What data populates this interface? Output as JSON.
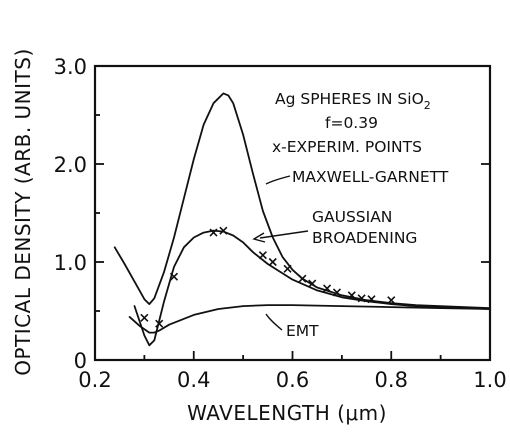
{
  "chart_data": {
    "type": "line",
    "xlabel": "WAVELENGTH (μm)",
    "ylabel": "OPTICAL DENSITY (ARB. UNITS)",
    "xlim": [
      0.2,
      1.0
    ],
    "ylim": [
      0.0,
      3.0
    ],
    "x_ticks": [
      0.2,
      0.4,
      0.6,
      0.8,
      1.0
    ],
    "x_tick_labels": [
      "0.2",
      "0.4",
      "0.6",
      "0.8",
      "1.0"
    ],
    "y_ticks": [
      0,
      1.0,
      2.0,
      3.0
    ],
    "y_tick_labels": [
      "0",
      "1.0",
      "2.0",
      "3.0"
    ],
    "grid": false,
    "annotations": {
      "title_line1": "Ag SPHERES IN SiO",
      "title_subscript": "2",
      "fill_fraction": "f=0.39",
      "experimental_note": "x-EXPERIM. POINTS",
      "maxwell_garnett": "MAXWELL-GARNETT",
      "gaussian_line1": "GAUSSIAN",
      "gaussian_line2": "BROADENING",
      "emt": "EMT"
    },
    "series": [
      {
        "name": "MAXWELL-GARNETT",
        "x": [
          0.24,
          0.26,
          0.28,
          0.3,
          0.31,
          0.32,
          0.34,
          0.36,
          0.38,
          0.4,
          0.42,
          0.44,
          0.46,
          0.47,
          0.48,
          0.5,
          0.52,
          0.54,
          0.56,
          0.58,
          0.6,
          0.62,
          0.65,
          0.7,
          0.75,
          0.8,
          0.85,
          0.9,
          0.95,
          1.0
        ],
        "y": [
          1.15,
          0.98,
          0.8,
          0.62,
          0.57,
          0.63,
          0.9,
          1.25,
          1.65,
          2.05,
          2.4,
          2.62,
          2.72,
          2.7,
          2.62,
          2.3,
          1.9,
          1.52,
          1.25,
          1.05,
          0.92,
          0.83,
          0.74,
          0.66,
          0.61,
          0.58,
          0.56,
          0.55,
          0.54,
          0.53
        ]
      },
      {
        "name": "GAUSSIAN BROADENING",
        "x": [
          0.28,
          0.3,
          0.31,
          0.32,
          0.34,
          0.36,
          0.38,
          0.4,
          0.42,
          0.44,
          0.46,
          0.48,
          0.5,
          0.52,
          0.55,
          0.6,
          0.65,
          0.7,
          0.75,
          0.8,
          0.85,
          0.9,
          0.95,
          1.0
        ],
        "y": [
          0.55,
          0.25,
          0.15,
          0.2,
          0.6,
          0.95,
          1.15,
          1.25,
          1.3,
          1.32,
          1.31,
          1.27,
          1.2,
          1.1,
          0.98,
          0.82,
          0.71,
          0.64,
          0.6,
          0.57,
          0.55,
          0.54,
          0.53,
          0.52
        ]
      },
      {
        "name": "EMT",
        "x": [
          0.27,
          0.29,
          0.31,
          0.32,
          0.33,
          0.35,
          0.4,
          0.45,
          0.5,
          0.55,
          0.6,
          0.7,
          0.8,
          0.9,
          1.0
        ],
        "y": [
          0.44,
          0.35,
          0.28,
          0.28,
          0.3,
          0.36,
          0.46,
          0.52,
          0.55,
          0.56,
          0.56,
          0.55,
          0.54,
          0.53,
          0.52
        ]
      },
      {
        "name": "x-EXPERIM. POINTS",
        "marker": "x",
        "x": [
          0.3,
          0.33,
          0.36,
          0.44,
          0.46,
          0.54,
          0.56,
          0.59,
          0.62,
          0.64,
          0.67,
          0.69,
          0.72,
          0.74,
          0.76,
          0.8
        ],
        "y": [
          0.43,
          0.37,
          0.85,
          1.3,
          1.32,
          1.07,
          1.0,
          0.93,
          0.83,
          0.78,
          0.73,
          0.69,
          0.66,
          0.63,
          0.62,
          0.61
        ]
      }
    ]
  }
}
